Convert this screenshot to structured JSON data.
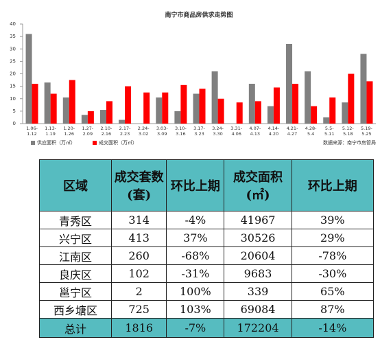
{
  "chart_data": {
    "type": "bar",
    "title": "南宁市商品房供求走势图",
    "categories": [
      "1.06-1.12",
      "1.13-1.19",
      "1.20-1.26",
      "1.27-2.09",
      "2.10-2.16",
      "2.17-2.23",
      "2.24-3.02",
      "3.03-3.09",
      "3.10-3.16",
      "3.17-3.23",
      "3.24-3.30",
      "3.31-4.06",
      "4.07-4.13",
      "4.14-4.20",
      "4.21-4.27",
      "4.28-5.4",
      "5.5-5.11",
      "5.12-5.18",
      "5.19-5.25"
    ],
    "series": [
      {
        "name": "供应面积（万㎡）",
        "color": "#808080",
        "values": [
          36,
          16.5,
          10.5,
          3.5,
          5.5,
          1.5,
          0,
          10.5,
          5,
          12,
          21,
          0,
          16,
          7,
          32,
          21,
          2.5,
          8.5,
          28
        ]
      },
      {
        "name": "成交面积（万㎡）",
        "color": "#ff0000",
        "values": [
          16,
          12,
          17.5,
          5,
          9,
          15,
          12.5,
          12.5,
          15.5,
          14,
          10,
          8.5,
          9,
          14.5,
          16,
          7,
          10.5,
          20,
          17
        ]
      }
    ],
    "ylim": [
      0,
      40
    ],
    "yticks": [
      0,
      5,
      10,
      15,
      20,
      25,
      30,
      35,
      40
    ],
    "grid": false,
    "annotation": "数据来源：南宁市房管局"
  },
  "table": {
    "header": [
      [
        "区域"
      ],
      [
        "成交套数",
        "(套)"
      ],
      [
        "环比上期"
      ],
      [
        "成交面积",
        "(㎡)"
      ],
      [
        "环比上期"
      ]
    ],
    "rows": [
      [
        "青秀区",
        "314",
        "-4%",
        "41967",
        "39%"
      ],
      [
        "兴宁区",
        "413",
        "37%",
        "30526",
        "29%"
      ],
      [
        "江南区",
        "260",
        "-68%",
        "20604",
        "-78%"
      ],
      [
        "良庆区",
        "102",
        "-31%",
        "9683",
        "-30%"
      ],
      [
        "邕宁区",
        "2",
        "100%",
        "339",
        "65%"
      ],
      [
        "西乡塘区",
        "725",
        "103%",
        "69084",
        "87%"
      ]
    ],
    "total": [
      "总计",
      "1816",
      "-7%",
      "172204",
      "-14%"
    ]
  }
}
